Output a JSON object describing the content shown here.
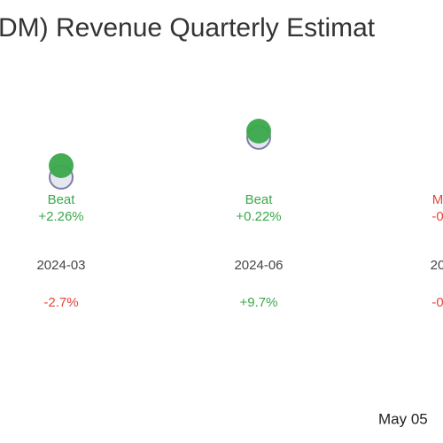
{
  "title": "DM) Revenue Quarterly Estimat",
  "columns": [
    {
      "result": "Beat",
      "surprise": "+2.26%",
      "period": "2024-03",
      "change": "-2.7%"
    },
    {
      "result": "Beat",
      "surprise": "+0.22%",
      "period": "2024-06",
      "change": "+9.7%"
    },
    {
      "result": "M",
      "surprise": "-0",
      "period": "20",
      "change": "-0"
    }
  ],
  "footer": "May 05"
}
